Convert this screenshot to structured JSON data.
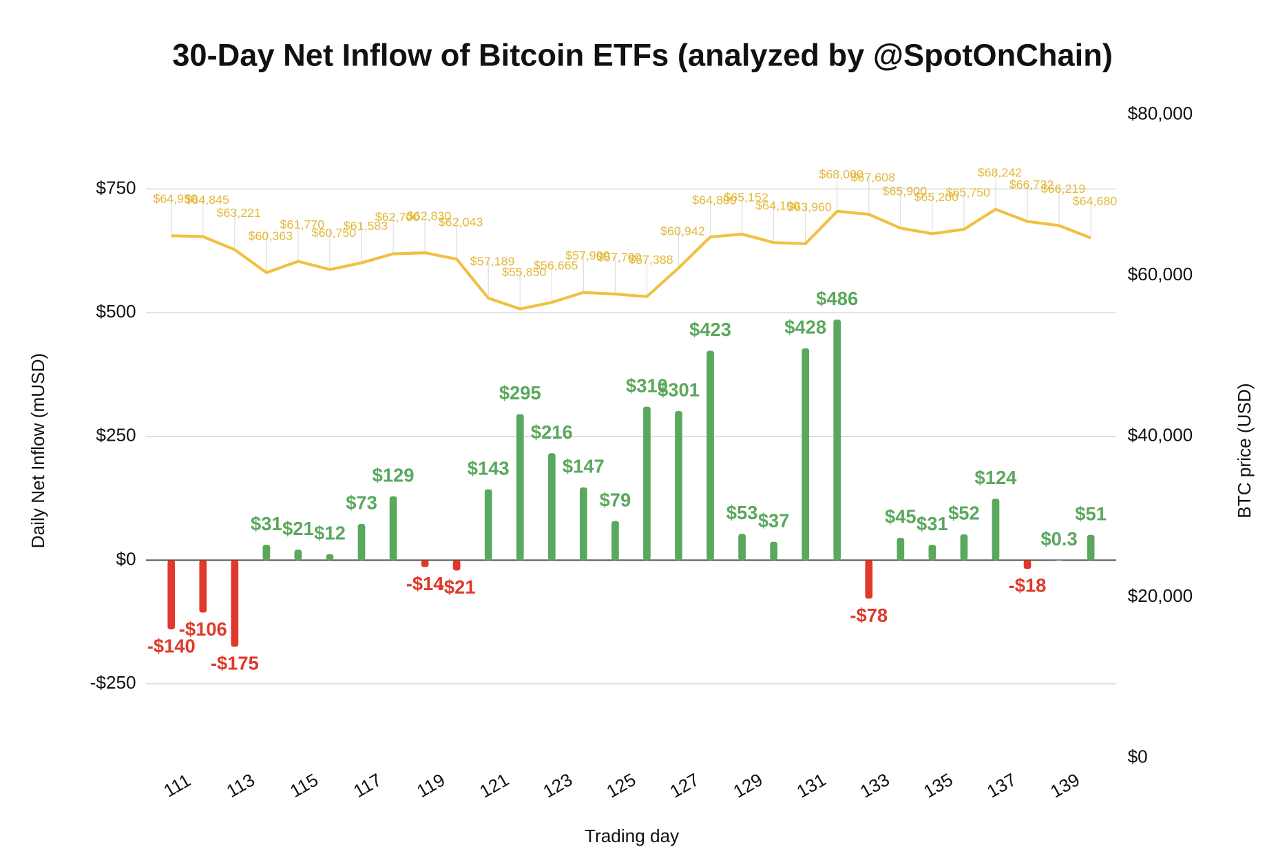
{
  "chart_data": {
    "type": "bar",
    "title": "30-Day Net Inflow of Bitcoin ETFs (analyzed by @SpotOnChain)",
    "x_label": "Trading day",
    "y_label": "Daily Net Inflow (mUSD)",
    "y2_label": "BTC price (USD)",
    "x": [
      111,
      112,
      113,
      114,
      115,
      116,
      117,
      118,
      119,
      120,
      121,
      122,
      123,
      124,
      125,
      126,
      127,
      128,
      129,
      130,
      131,
      132,
      133,
      134,
      135,
      136,
      137,
      138,
      139,
      140
    ],
    "xlim": [
      110.2,
      140.8
    ],
    "xticks": [
      111,
      113,
      115,
      117,
      119,
      121,
      123,
      125,
      127,
      129,
      131,
      133,
      135,
      137,
      139
    ],
    "ylim": [
      -400,
      900
    ],
    "yticks": [
      {
        "value": -250,
        "label": "-$250"
      },
      {
        "value": 0,
        "label": "$0"
      },
      {
        "value": 250,
        "label": "$250"
      },
      {
        "value": 500,
        "label": "$500"
      },
      {
        "value": 750,
        "label": "$750"
      }
    ],
    "y2lim": [
      0,
      80000
    ],
    "y2ticks": [
      {
        "value": 0,
        "label": "$0"
      },
      {
        "value": 20000,
        "label": "$20,000"
      },
      {
        "value": 40000,
        "label": "$40,000"
      },
      {
        "value": 60000,
        "label": "$60,000"
      },
      {
        "value": 80000,
        "label": "$80,000"
      }
    ],
    "grid": true,
    "series": [
      {
        "type": "bar",
        "color": "#5aa85d",
        "negative_color": "#e0392b",
        "values": [
          -140,
          -106,
          -175,
          31,
          21,
          12,
          73,
          129,
          -14,
          -21,
          143,
          295,
          216,
          147,
          79,
          310,
          301,
          423,
          53,
          37,
          428,
          486,
          -78,
          45,
          31,
          52,
          124,
          -18,
          0.3,
          51
        ],
        "value_labels": [
          "-$140",
          "-$106",
          "-$175",
          "$31",
          "$21",
          "$12",
          "$73",
          "$129",
          "-$14",
          "-$21",
          "$143",
          "$295",
          "$216",
          "$147",
          "$79",
          "$310",
          "$301",
          "$423",
          "$53",
          "$37",
          "$428",
          "$486",
          "-$78",
          "$45",
          "$31",
          "$52",
          "$124",
          "-$18",
          "$0.3",
          "$51"
        ]
      },
      {
        "type": "line",
        "axis": "y2",
        "color": "#f0c040",
        "values": [
          64950,
          64845,
          63221,
          60363,
          61770,
          60750,
          61583,
          62700,
          62830,
          62043,
          57189,
          55850,
          56665,
          57900,
          57700,
          57388,
          60942,
          64800,
          65152,
          64100,
          63960,
          68000,
          67608,
          65900,
          65200,
          65750,
          68242,
          66732,
          66219,
          64680
        ],
        "value_labels": [
          "$64,950",
          "$64,845",
          "$63,221",
          "$60,363",
          "$61,770",
          "$60,750",
          "$61,583",
          "$62,700",
          "$62,830",
          "$62,043",
          "$57,189",
          "$55,850",
          "$56,665",
          "$57,900",
          "$57,700",
          "$57,388",
          "$60,942",
          "$64,800",
          "$65,152",
          "$64,100",
          "$63,960",
          "$68,000",
          "$67,608",
          "$65,900",
          "$65,200",
          "$65,750",
          "$68,242",
          "$66,732",
          "$66,219",
          "$64,680"
        ]
      }
    ]
  }
}
